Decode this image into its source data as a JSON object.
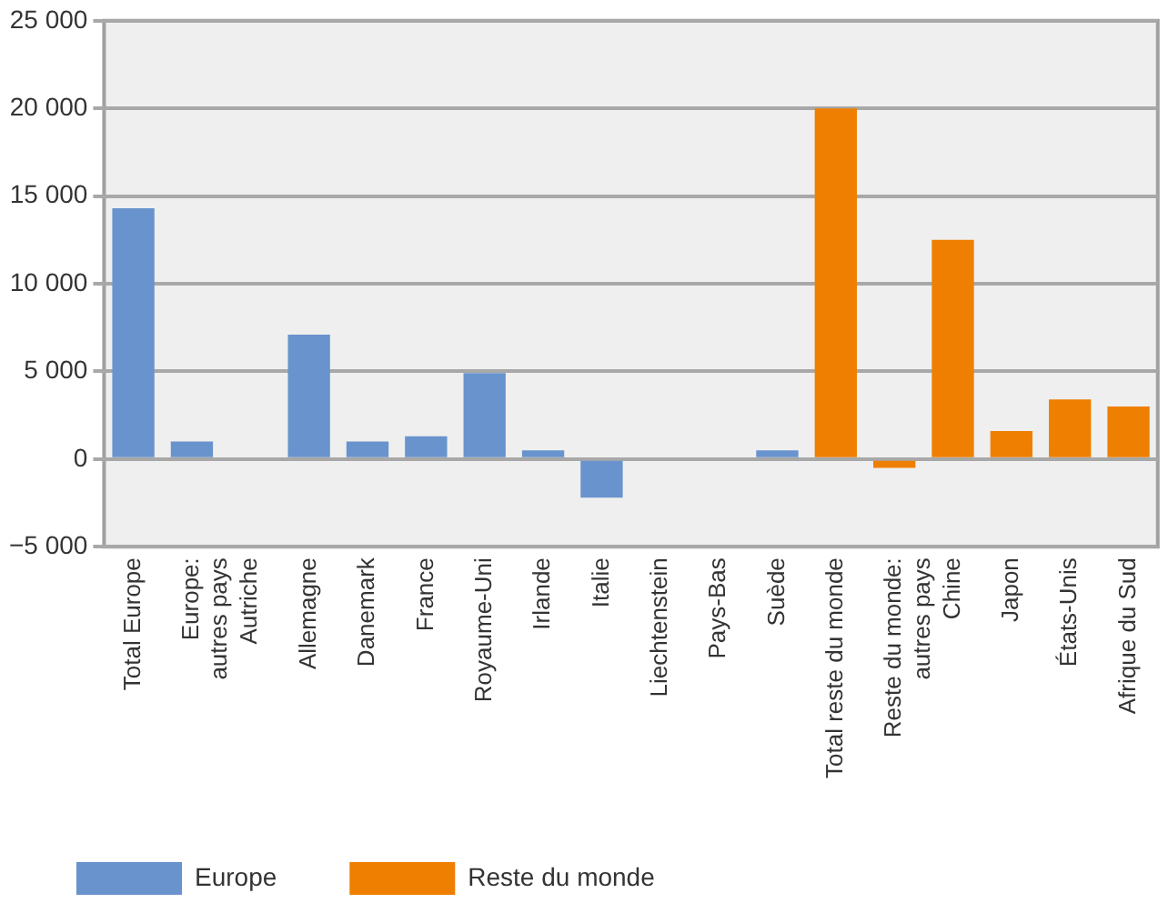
{
  "chart_data": {
    "type": "bar",
    "categories": [
      "Total Europe",
      "Europe: autres pays",
      "Autriche",
      "Allemagne",
      "Danemark",
      "France",
      "Royaume-Uni",
      "Irlande",
      "Italie",
      "Liechtenstein",
      "Pays-Bas",
      "Suède",
      "Total reste du monde",
      "Reste du monde: autres pays",
      "Chine",
      "Japon",
      "États-Unis",
      "Afrique du Sud"
    ],
    "series": [
      {
        "name": "Europe",
        "color": "#6893cd",
        "values": [
          14300,
          1000,
          0,
          7100,
          1000,
          1300,
          4900,
          500,
          -2200,
          100,
          0,
          500,
          null,
          null,
          null,
          null,
          null,
          null
        ]
      },
      {
        "name": "Reste du monde",
        "color": "#ef7f00",
        "values": [
          null,
          null,
          null,
          null,
          null,
          null,
          null,
          null,
          null,
          null,
          null,
          null,
          20000,
          -500,
          12500,
          1600,
          3400,
          3000
        ]
      }
    ],
    "ylim": [
      -5000,
      25000
    ],
    "yticks": [
      {
        "value": -5000,
        "label": "−5 000"
      },
      {
        "value": 0,
        "label": "0"
      },
      {
        "value": 5000,
        "label": "5 000"
      },
      {
        "value": 10000,
        "label": "10 000"
      },
      {
        "value": 15000,
        "label": "15 000"
      },
      {
        "value": 20000,
        "label": "20 000"
      },
      {
        "value": 25000,
        "label": "25 000"
      }
    ],
    "grid": "y",
    "legend": "bottom left"
  }
}
